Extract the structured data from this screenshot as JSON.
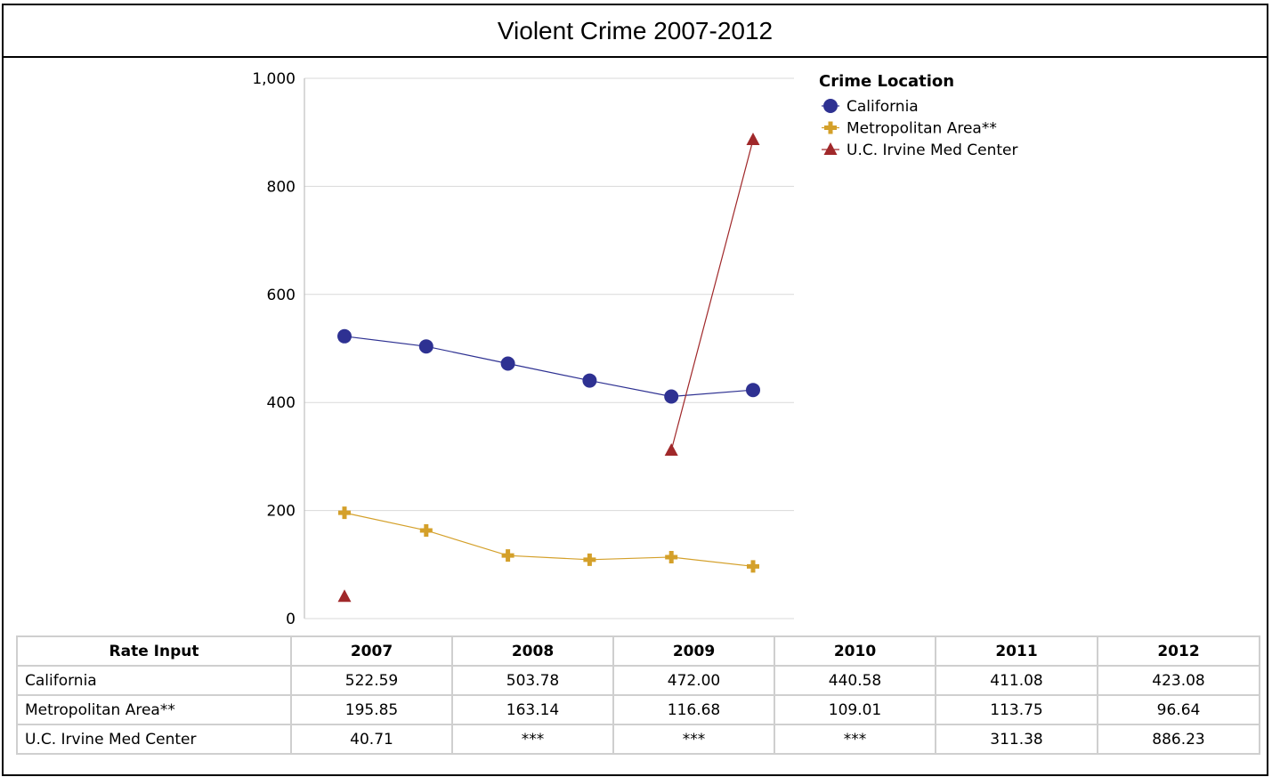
{
  "chart_data": {
    "type": "line",
    "title": "Violent Crime 2007-2012",
    "categories": [
      "2007",
      "2008",
      "2009",
      "2010",
      "2011",
      "2012"
    ],
    "ylim": [
      0,
      1000
    ],
    "y_ticks": [
      "0",
      "200",
      "400",
      "600",
      "800",
      "1,000"
    ],
    "grid": true,
    "legend_title": "Crime Location",
    "legend_position": "top-right",
    "series": [
      {
        "name": "California",
        "marker": "circle",
        "color": "#2E3192",
        "values": [
          522.59,
          503.78,
          472.0,
          440.58,
          411.08,
          423.08
        ]
      },
      {
        "name": "Metropolitan Area**",
        "marker": "plus",
        "color": "#D4A02A",
        "values": [
          195.85,
          163.14,
          116.68,
          109.01,
          113.75,
          96.64
        ]
      },
      {
        "name": "U.C. Irvine Med Center",
        "marker": "triangle",
        "color": "#A0282A",
        "values": [
          40.71,
          null,
          null,
          null,
          311.38,
          886.23
        ]
      }
    ]
  },
  "table": {
    "header_label": "Rate Input",
    "years": [
      "2007",
      "2008",
      "2009",
      "2010",
      "2011",
      "2012"
    ],
    "rows": [
      {
        "label": "California",
        "cells": [
          "522.59",
          "503.78",
          "472.00",
          "440.58",
          "411.08",
          "423.08"
        ]
      },
      {
        "label": "Metropolitan Area**",
        "cells": [
          "195.85",
          "163.14",
          "116.68",
          "109.01",
          "113.75",
          "96.64"
        ]
      },
      {
        "label": "U.C. Irvine Med Center",
        "cells": [
          "40.71",
          "***",
          "***",
          "***",
          "311.38",
          "886.23"
        ]
      }
    ]
  }
}
